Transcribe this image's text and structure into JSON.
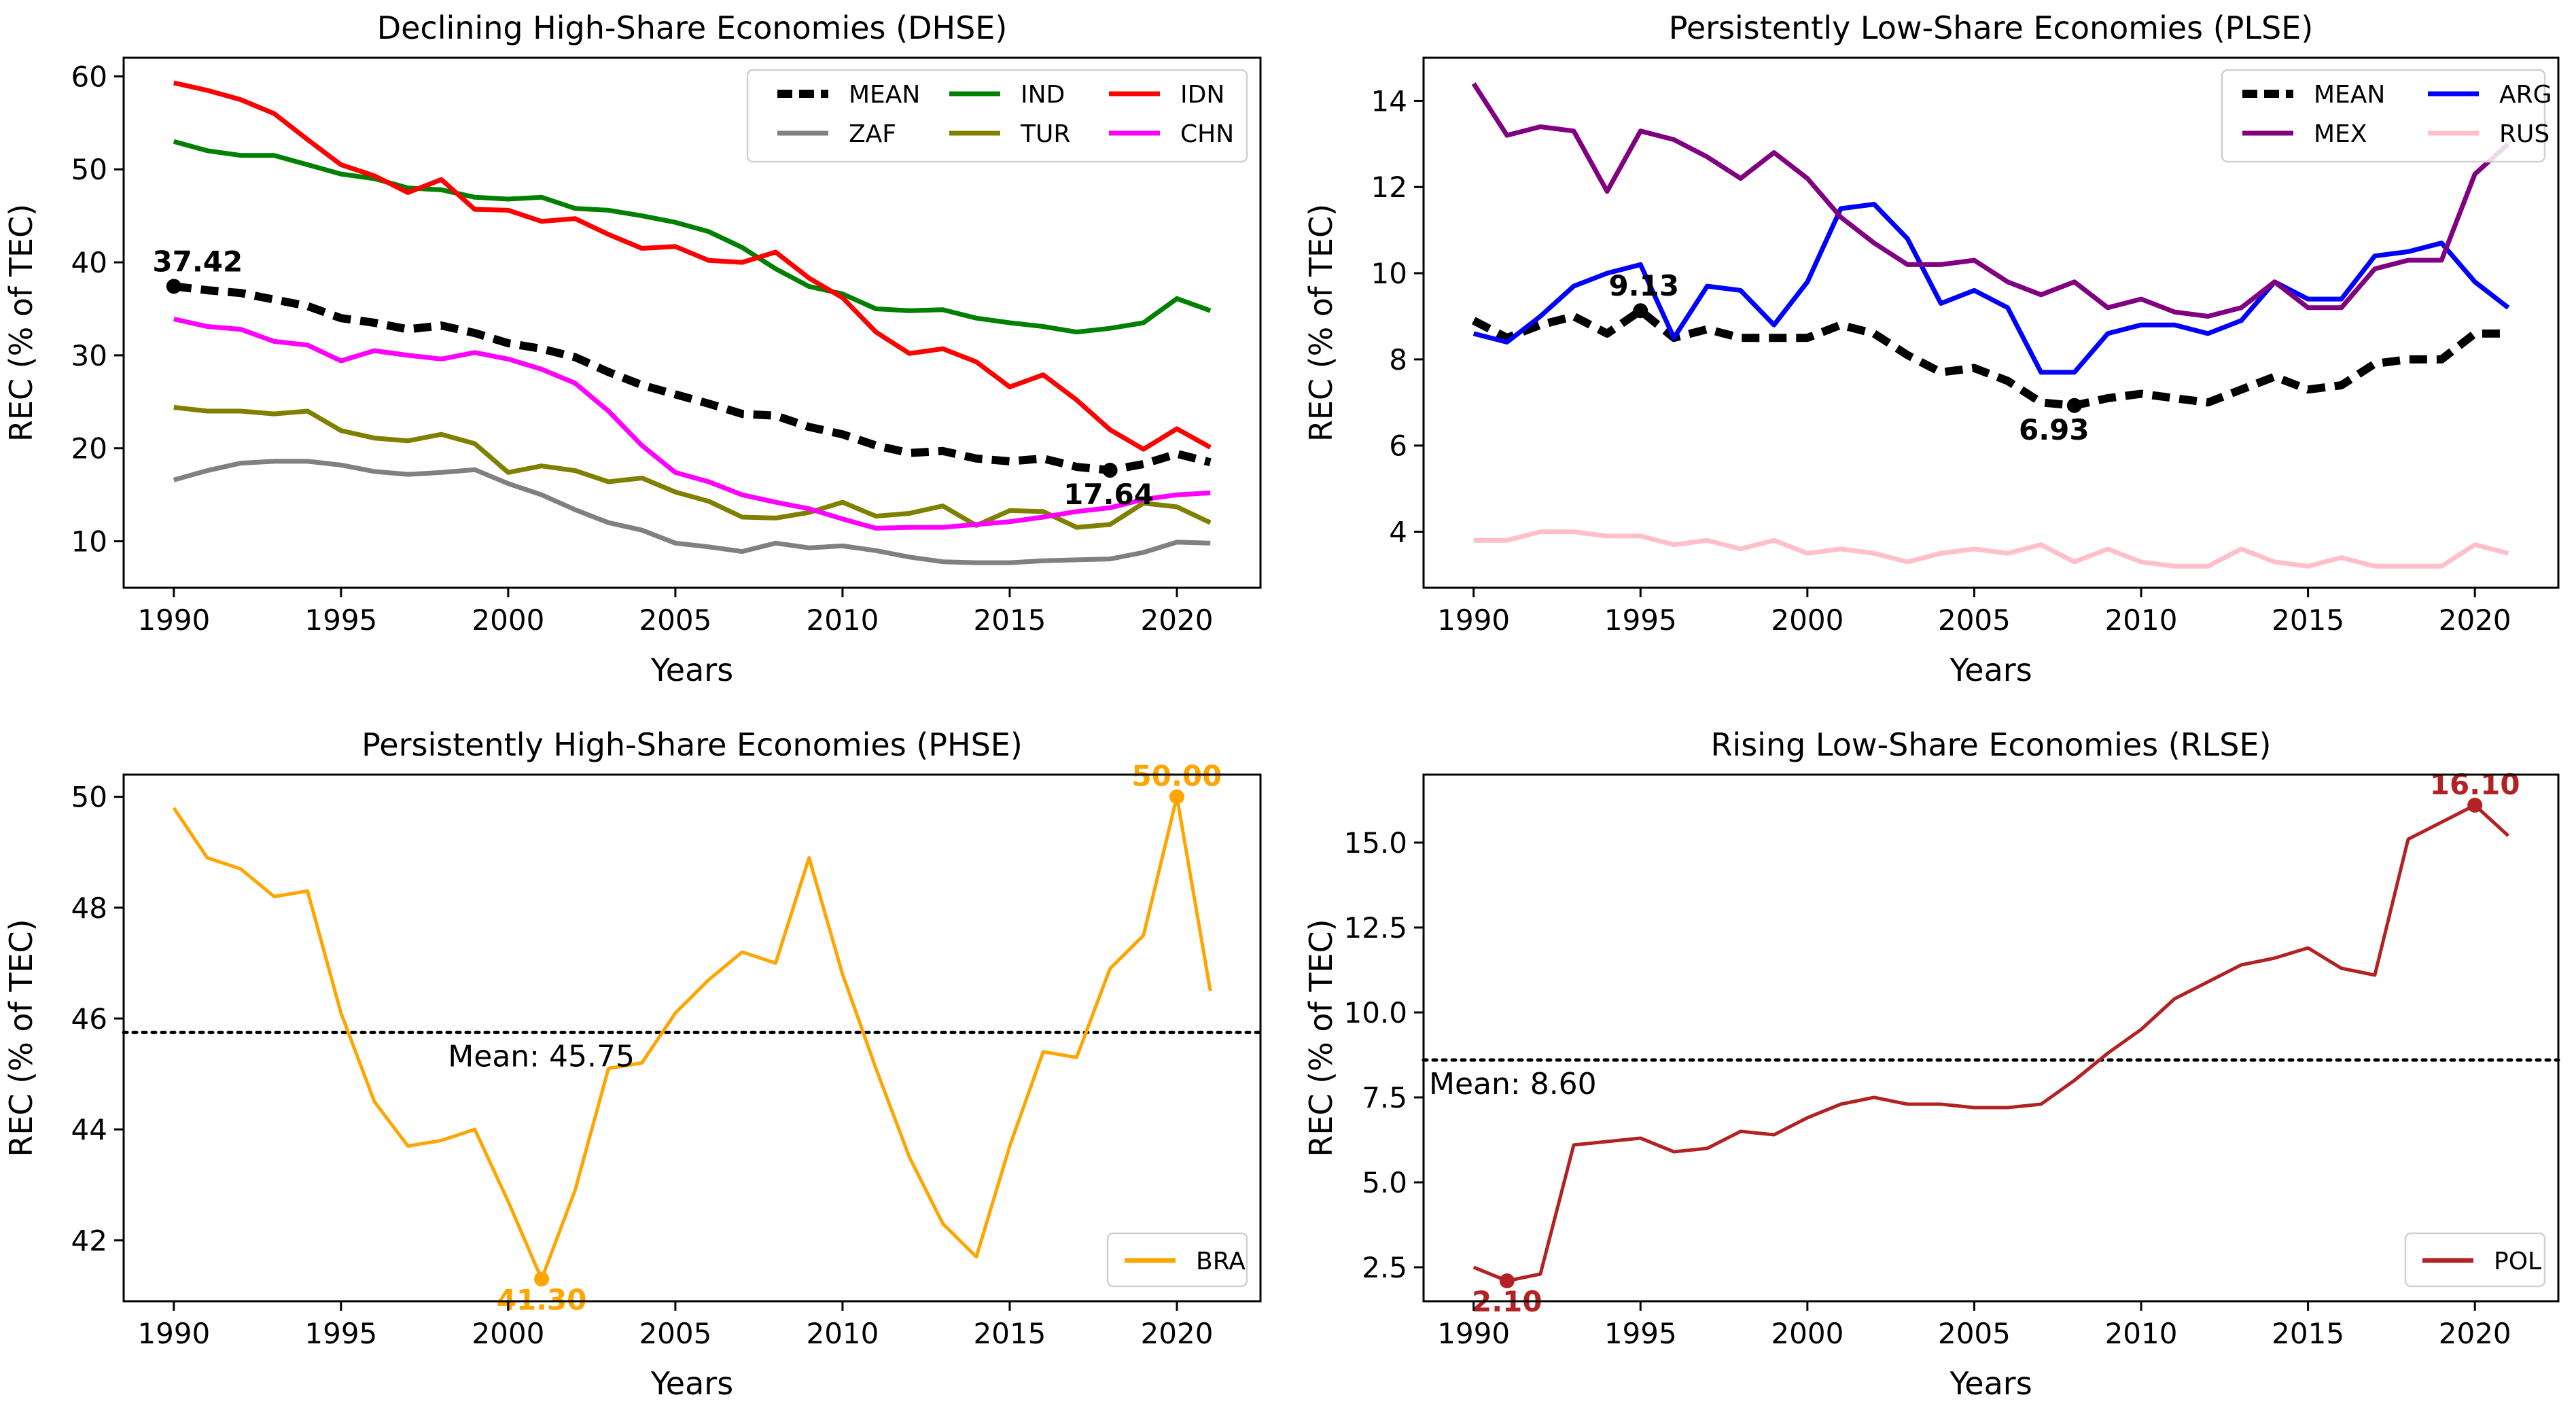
{
  "chart_data": [
    {
      "type": "line",
      "title": "Declining High-Share Economies (DHSE)",
      "xlabel": "Years",
      "ylabel": "REC (% of TEC)",
      "xlim": [
        1988.5,
        2022.5
      ],
      "ylim": [
        5,
        62
      ],
      "xticks": [
        1990,
        1995,
        2000,
        2005,
        2010,
        2015,
        2020
      ],
      "yticks": [
        10,
        20,
        30,
        40,
        50,
        60
      ],
      "legend_position": "top-right",
      "legend_cols": 3,
      "x": [
        1990,
        1991,
        1992,
        1993,
        1994,
        1995,
        1996,
        1997,
        1998,
        1999,
        2000,
        2001,
        2002,
        2003,
        2004,
        2005,
        2006,
        2007,
        2008,
        2009,
        2010,
        2011,
        2012,
        2013,
        2014,
        2015,
        2016,
        2017,
        2018,
        2019,
        2020,
        2021
      ],
      "series": [
        {
          "name": "MEAN",
          "color": "#000000",
          "dashed": true,
          "width": 12,
          "values": [
            37.42,
            37.0,
            36.7,
            36.0,
            35.3,
            34.0,
            33.5,
            32.8,
            33.2,
            32.4,
            31.3,
            30.7,
            29.8,
            28.2,
            26.8,
            25.8,
            24.8,
            23.7,
            23.5,
            22.3,
            21.5,
            20.3,
            19.5,
            19.7,
            18.9,
            18.6,
            18.9,
            18.0,
            17.64,
            18.3,
            19.4,
            18.5
          ]
        },
        {
          "name": "IND",
          "color": "#008000",
          "dashed": false,
          "width": 7,
          "values": [
            53.0,
            52.0,
            51.5,
            51.5,
            50.5,
            49.5,
            49.0,
            48.0,
            47.8,
            47.0,
            46.8,
            47.0,
            45.8,
            45.6,
            45.0,
            44.3,
            43.3,
            41.6,
            39.3,
            37.4,
            36.6,
            35.0,
            34.8,
            34.9,
            34.0,
            33.5,
            33.1,
            32.5,
            32.9,
            33.5,
            36.1,
            34.8
          ]
        },
        {
          "name": "IDN",
          "color": "#ff0000",
          "dashed": false,
          "width": 7,
          "values": [
            59.3,
            58.5,
            57.5,
            56.0,
            53.2,
            50.5,
            49.3,
            47.5,
            48.9,
            45.7,
            45.6,
            44.4,
            44.7,
            43.0,
            41.5,
            41.7,
            40.2,
            40.0,
            41.1,
            38.3,
            36.2,
            32.5,
            30.2,
            30.7,
            29.3,
            26.6,
            27.9,
            25.2,
            22.0,
            19.9,
            22.1,
            20.1
          ]
        },
        {
          "name": "ZAF",
          "color": "#808080",
          "dashed": false,
          "width": 7,
          "values": [
            16.6,
            17.6,
            18.4,
            18.6,
            18.6,
            18.2,
            17.5,
            17.2,
            17.4,
            17.7,
            16.2,
            15.0,
            13.4,
            12.0,
            11.2,
            9.8,
            9.4,
            8.9,
            9.8,
            9.3,
            9.5,
            9.0,
            8.3,
            7.8,
            7.7,
            7.7,
            7.9,
            8.0,
            8.1,
            8.8,
            9.9,
            9.8
          ]
        },
        {
          "name": "TUR",
          "color": "#808000",
          "dashed": false,
          "width": 7,
          "values": [
            24.4,
            24.0,
            24.0,
            23.7,
            24.0,
            21.9,
            21.1,
            20.8,
            21.5,
            20.5,
            17.4,
            18.1,
            17.6,
            16.4,
            16.8,
            15.3,
            14.3,
            12.6,
            12.5,
            13.1,
            14.2,
            12.7,
            13.0,
            13.8,
            11.7,
            13.3,
            13.2,
            11.5,
            11.8,
            14.1,
            13.7,
            12.0
          ]
        },
        {
          "name": "CHN",
          "color": "#ff00ff",
          "dashed": false,
          "width": 7,
          "values": [
            33.9,
            33.1,
            32.8,
            31.5,
            31.1,
            29.4,
            30.5,
            30.0,
            29.6,
            30.3,
            29.6,
            28.5,
            27.0,
            24.0,
            20.3,
            17.4,
            16.4,
            15.0,
            14.2,
            13.5,
            12.4,
            11.4,
            11.5,
            11.5,
            11.8,
            12.1,
            12.6,
            13.2,
            13.6,
            14.5,
            15.0,
            15.2
          ]
        }
      ],
      "annotations": [
        {
          "text": "37.42",
          "x": 1990,
          "y": 37.42,
          "color": "#000000"
        },
        {
          "text": "17.64",
          "x": 2018,
          "y": 17.64,
          "color": "#000000"
        }
      ]
    },
    {
      "type": "line",
      "title": "Persistently Low-Share Economies (PLSE)",
      "xlabel": "Years",
      "ylabel": "REC (% of TEC)",
      "xlim": [
        1988.5,
        2022.5
      ],
      "ylim": [
        2.7,
        15.0
      ],
      "xticks": [
        1990,
        1995,
        2000,
        2005,
        2010,
        2015,
        2020
      ],
      "yticks": [
        4,
        6,
        8,
        10,
        12,
        14
      ],
      "legend_position": "top-right",
      "legend_cols": 2,
      "x": [
        1990,
        1991,
        1992,
        1993,
        1994,
        1995,
        1996,
        1997,
        1998,
        1999,
        2000,
        2001,
        2002,
        2003,
        2004,
        2005,
        2006,
        2007,
        2008,
        2009,
        2010,
        2011,
        2012,
        2013,
        2014,
        2015,
        2016,
        2017,
        2018,
        2019,
        2020,
        2021
      ],
      "series": [
        {
          "name": "MEAN",
          "color": "#000000",
          "dashed": true,
          "width": 12,
          "values": [
            8.9,
            8.5,
            8.8,
            9.0,
            8.6,
            9.13,
            8.5,
            8.7,
            8.5,
            8.5,
            8.5,
            8.8,
            8.6,
            8.1,
            7.7,
            7.8,
            7.5,
            7.0,
            6.93,
            7.1,
            7.2,
            7.1,
            7.0,
            7.3,
            7.6,
            7.3,
            7.4,
            7.9,
            8.0,
            8.0,
            8.6,
            8.6
          ]
        },
        {
          "name": "ARG",
          "color": "#0000ff",
          "dashed": false,
          "width": 7,
          "values": [
            8.6,
            8.4,
            9.0,
            9.7,
            10.0,
            10.2,
            8.5,
            9.7,
            9.6,
            8.8,
            9.8,
            11.5,
            11.6,
            10.8,
            9.3,
            9.6,
            9.2,
            7.7,
            7.7,
            8.6,
            8.8,
            8.8,
            8.6,
            8.9,
            9.8,
            9.4,
            9.4,
            10.4,
            10.5,
            10.7,
            9.8,
            9.2
          ]
        },
        {
          "name": "MEX",
          "color": "#800080",
          "dashed": false,
          "width": 7,
          "values": [
            14.4,
            13.2,
            13.4,
            13.3,
            11.9,
            13.3,
            13.1,
            12.7,
            12.2,
            12.8,
            12.2,
            11.3,
            10.7,
            10.2,
            10.2,
            10.3,
            9.8,
            9.5,
            9.8,
            9.2,
            9.4,
            9.1,
            9.0,
            9.2,
            9.8,
            9.2,
            9.2,
            10.1,
            10.3,
            10.3,
            12.3,
            13.0
          ]
        },
        {
          "name": "RUS",
          "color": "#ffc0cb",
          "dashed": false,
          "width": 7,
          "values": [
            3.8,
            3.8,
            4.0,
            4.0,
            3.9,
            3.9,
            3.7,
            3.8,
            3.6,
            3.8,
            3.5,
            3.6,
            3.5,
            3.3,
            3.5,
            3.6,
            3.5,
            3.7,
            3.3,
            3.6,
            3.3,
            3.2,
            3.2,
            3.6,
            3.3,
            3.2,
            3.4,
            3.2,
            3.2,
            3.2,
            3.7,
            3.5
          ]
        }
      ],
      "annotations": [
        {
          "text": "9.13",
          "x": 1995,
          "y": 9.13,
          "color": "#000000"
        },
        {
          "text": "6.93",
          "x": 2008,
          "y": 6.93,
          "color": "#000000"
        }
      ]
    },
    {
      "type": "line",
      "title": "Persistently High-Share Economies (PHSE)",
      "xlabel": "Years",
      "ylabel": "REC (% of TEC)",
      "xlim": [
        1988.5,
        2022.5
      ],
      "ylim": [
        40.9,
        50.4
      ],
      "xticks": [
        1990,
        1995,
        2000,
        2005,
        2010,
        2015,
        2020
      ],
      "yticks": [
        42,
        44,
        46,
        48,
        50
      ],
      "legend_position": "bottom-right",
      "legend_cols": 1,
      "x": [
        1990,
        1991,
        1992,
        1993,
        1994,
        1995,
        1996,
        1997,
        1998,
        1999,
        2000,
        2001,
        2002,
        2003,
        2004,
        2005,
        2006,
        2007,
        2008,
        2009,
        2010,
        2011,
        2012,
        2013,
        2014,
        2015,
        2016,
        2017,
        2018,
        2019,
        2020,
        2021
      ],
      "series": [
        {
          "name": "BRA",
          "color": "#ffa500",
          "dashed": false,
          "width": 5,
          "values": [
            49.8,
            48.9,
            48.7,
            48.2,
            48.3,
            46.1,
            44.5,
            43.7,
            43.8,
            44.0,
            42.7,
            41.3,
            42.9,
            45.1,
            45.2,
            46.1,
            46.7,
            47.2,
            47.0,
            48.9,
            46.8,
            45.1,
            43.5,
            42.3,
            41.7,
            43.7,
            45.4,
            45.3,
            46.9,
            47.5,
            50.0,
            46.5
          ]
        }
      ],
      "mean_line": {
        "value": 45.75,
        "label": "Mean: 45.75"
      },
      "annotations": [
        {
          "text": "50.00",
          "x": 2020,
          "y": 50.0,
          "color": "#ffa500",
          "position": "above"
        },
        {
          "text": "41.30",
          "x": 2001,
          "y": 41.3,
          "color": "#ffa500",
          "position": "below"
        }
      ]
    },
    {
      "type": "line",
      "title": "Rising Low-Share Economies (RLSE)",
      "xlabel": "Years",
      "ylabel": "REC (% of TEC)",
      "xlim": [
        1988.5,
        2022.5
      ],
      "ylim": [
        1.5,
        17.0
      ],
      "xticks": [
        1990,
        1995,
        2000,
        2005,
        2010,
        2015,
        2020
      ],
      "yticks": [
        2.5,
        5.0,
        7.5,
        10.0,
        12.5,
        15.0
      ],
      "ytick_labels": [
        "2.5",
        "5.0",
        "7.5",
        "10.0",
        "12.5",
        "15.0"
      ],
      "legend_position": "bottom-right",
      "legend_cols": 1,
      "x": [
        1990,
        1991,
        1992,
        1993,
        1994,
        1995,
        1996,
        1997,
        1998,
        1999,
        2000,
        2001,
        2002,
        2003,
        2004,
        2005,
        2006,
        2007,
        2008,
        2009,
        2010,
        2011,
        2012,
        2013,
        2014,
        2015,
        2016,
        2017,
        2018,
        2019,
        2020,
        2021
      ],
      "series": [
        {
          "name": "POL",
          "color": "#b22222",
          "dashed": false,
          "width": 5,
          "values": [
            2.5,
            2.1,
            2.3,
            6.1,
            6.2,
            6.3,
            5.9,
            6.0,
            6.5,
            6.4,
            6.9,
            7.3,
            7.5,
            7.3,
            7.3,
            7.2,
            7.2,
            7.3,
            8.0,
            8.8,
            9.5,
            10.4,
            10.9,
            11.4,
            11.6,
            11.9,
            11.3,
            11.1,
            15.1,
            15.6,
            16.1,
            15.2
          ]
        }
      ],
      "mean_line": {
        "value": 8.6,
        "label": "Mean: 8.60"
      },
      "annotations": [
        {
          "text": "16.10",
          "x": 2020,
          "y": 16.1,
          "color": "#b22222",
          "position": "above"
        },
        {
          "text": "2.10",
          "x": 1991,
          "y": 2.1,
          "color": "#b22222",
          "position": "below"
        }
      ]
    }
  ]
}
